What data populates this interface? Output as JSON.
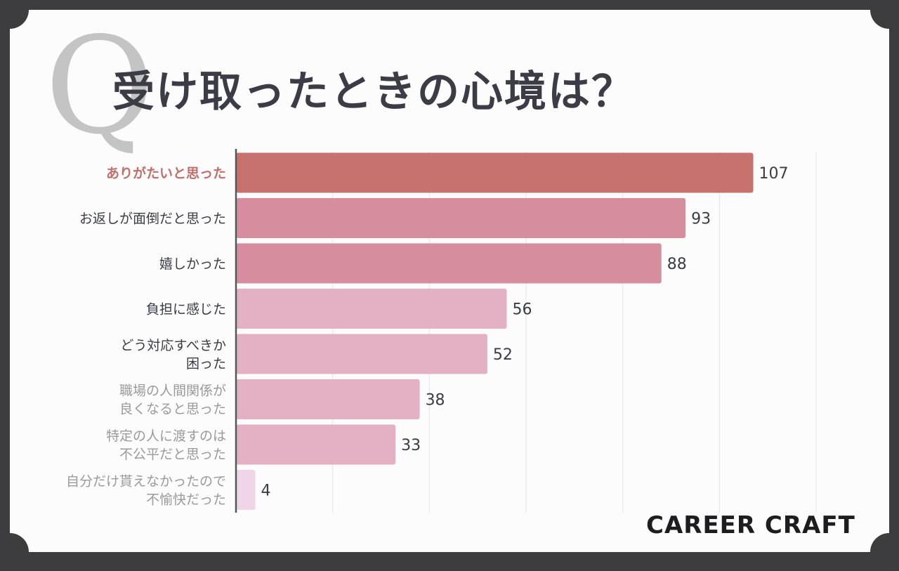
{
  "header": {
    "q_mark": "Q",
    "title": "受け取ったときの心境は？"
  },
  "brand": "CAREER CRAFT",
  "chart_data": {
    "type": "bar",
    "orientation": "horizontal",
    "categories": [
      [
        "ありがたいと思った"
      ],
      [
        "お返しが面倒だと思った"
      ],
      [
        "嬉しかった"
      ],
      [
        "負担に感じた"
      ],
      [
        "どう対応すべきか",
        "困った"
      ],
      [
        "職場の人間関係が",
        "良くなると思った"
      ],
      [
        "特定の人に渡すのは",
        "不公平だと思った"
      ],
      [
        "自分だけ貰えなかったので",
        "不愉快だった"
      ]
    ],
    "values": [
      107,
      93,
      88,
      56,
      52,
      38,
      33,
      4
    ],
    "xlim": [
      0,
      120
    ],
    "grid": true,
    "bar_colors": [
      "#c7726f",
      "#d68e9e",
      "#d68e9e",
      "#e3b1c3",
      "#e3b1c3",
      "#e3b1c3",
      "#e3b1c3",
      "#f0d4e8"
    ],
    "label_colors": [
      "#c0706c",
      "#3b3c45",
      "#3b3c45",
      "#3b3c45",
      "#3b3c45",
      "#9a9a9a",
      "#9a9a9a",
      "#9a9a9a"
    ],
    "highlight_label_bold": [
      true,
      false,
      false,
      false,
      false,
      false,
      false,
      false
    ]
  }
}
